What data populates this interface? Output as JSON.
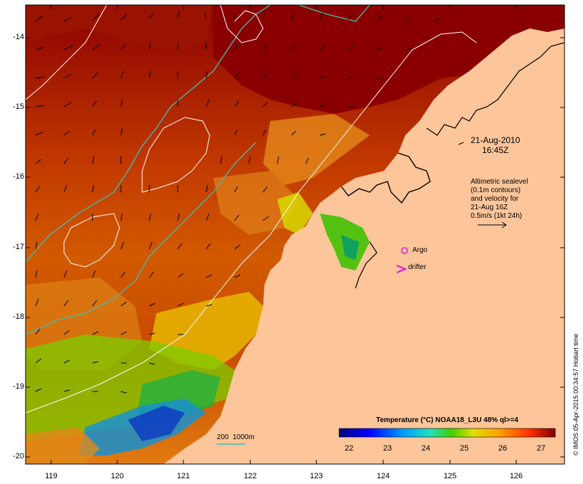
{
  "map": {
    "lat_ticks": [
      "-14",
      "-15",
      "-16",
      "-17",
      "-18",
      "-19",
      "-20"
    ],
    "lon_ticks": [
      "119",
      "120",
      "121",
      "122",
      "123",
      "124",
      "125",
      "126"
    ],
    "date_label": "21-Aug-2010",
    "time_label": "16:45Z",
    "altimetry_note": [
      "Altimetric sealevel",
      "(0.1m contours)",
      "and velocity for",
      "21-Aug 16Z",
      "0.5m/s (1kt 24h)"
    ],
    "argo_label": "Argo",
    "drifter_label": "drifter",
    "depth_legend": "200  1000m",
    "colorbar": {
      "title": "Temperature (°C) NOAA18_L3U 48% ql>=4",
      "ticks": [
        "22",
        "23",
        "24",
        "25",
        "26",
        "27"
      ]
    },
    "stamp": "© IMOS 05-Apr-2015 00:34:57 Hobart time",
    "colors": {
      "land": "#fcc59a",
      "depth_200m": "#ffffff",
      "depth_1000m": "#3fbfb4",
      "argo": "#e020e0"
    }
  }
}
